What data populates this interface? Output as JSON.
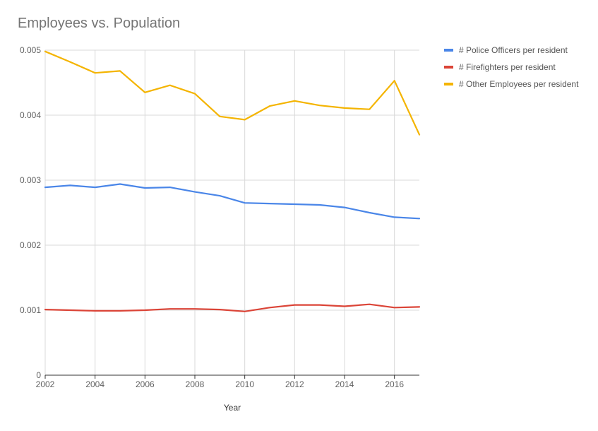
{
  "chart_data": {
    "type": "line",
    "title": "Employees vs. Population",
    "xlabel": "Year",
    "ylabel": "",
    "xlim": [
      2002,
      2017
    ],
    "ylim": [
      0,
      0.005
    ],
    "x_ticks": [
      "2002",
      "2004",
      "2006",
      "2008",
      "2010",
      "2012",
      "2014",
      "2016"
    ],
    "y_ticks": [
      "0",
      "0.001",
      "0.002",
      "0.003",
      "0.004",
      "0.005"
    ],
    "grid": true,
    "legend_position": "right",
    "x": [
      2002,
      2003,
      2004,
      2005,
      2006,
      2007,
      2008,
      2009,
      2010,
      2011,
      2012,
      2013,
      2014,
      2015,
      2016,
      2017
    ],
    "series": [
      {
        "name": "# Police Officers per resident",
        "color": "#4a86e8",
        "values": [
          0.00289,
          0.00292,
          0.00289,
          0.00294,
          0.00288,
          0.00289,
          0.00282,
          0.00276,
          0.00265,
          0.00264,
          0.00263,
          0.00262,
          0.00258,
          0.0025,
          0.00243,
          0.00241
        ]
      },
      {
        "name": "# Firefighters per resident",
        "color": "#db4437",
        "values": [
          0.00101,
          0.001,
          0.00099,
          0.00099,
          0.001,
          0.00102,
          0.00102,
          0.00101,
          0.00098,
          0.00104,
          0.00108,
          0.00108,
          0.00106,
          0.00109,
          0.00104,
          0.00105
        ]
      },
      {
        "name": "# Other Employees per resident",
        "color": "#f4b400",
        "values": [
          0.00498,
          0.00482,
          0.00465,
          0.00468,
          0.00435,
          0.00446,
          0.00433,
          0.00398,
          0.00393,
          0.00414,
          0.00422,
          0.00415,
          0.00411,
          0.00409,
          0.00453,
          0.0037
        ]
      }
    ]
  }
}
